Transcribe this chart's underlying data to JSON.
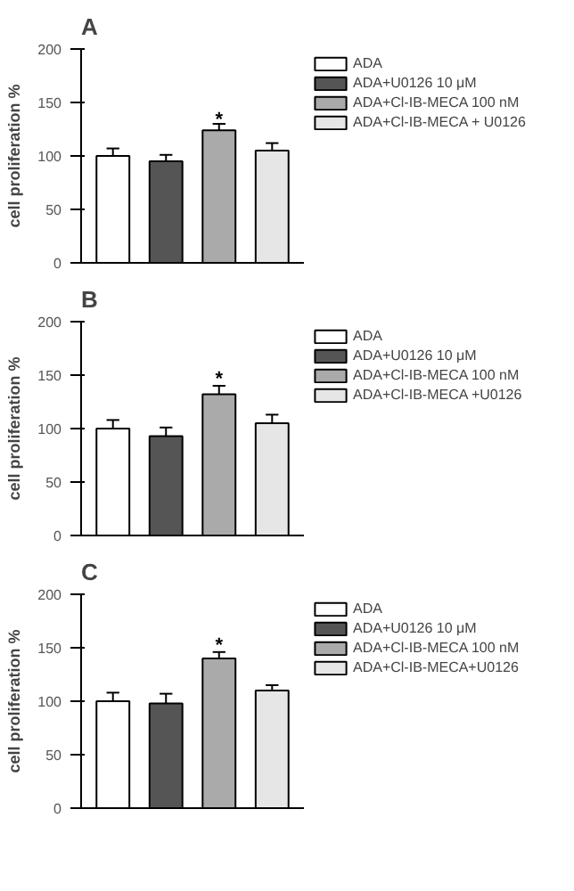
{
  "chart_data": [
    {
      "type": "bar",
      "title": "A",
      "ylabel": "cell proliferation %",
      "categories": [
        null
      ],
      "ylim": [
        0,
        200
      ],
      "yticks": [
        0,
        50,
        100,
        150,
        200
      ],
      "grid": false,
      "legend": "right",
      "tick_labels": "y",
      "series": [
        {
          "name": "ADA",
          "color": "#ffffff",
          "values": [
            100
          ],
          "errors": [
            7
          ]
        },
        {
          "name": "ADA+U0126 10 μM",
          "color": "#555555",
          "values": [
            95
          ],
          "errors": [
            6
          ]
        },
        {
          "name": "ADA+Cl-IB-MECA 100 nM",
          "color": "#aaaaaa",
          "values": [
            124
          ],
          "errors": [
            6
          ]
        },
        {
          "name": "ADA+Cl-IB-MECA + U0126",
          "color": "#e6e6e6",
          "values": [
            105
          ],
          "errors": [
            7
          ]
        }
      ],
      "annotations": [
        {
          "text": "*",
          "y": 133
        }
      ]
    },
    {
      "type": "bar",
      "title": "B",
      "ylabel": "cell proliferation %",
      "categories": [
        null
      ],
      "ylim": [
        0,
        200
      ],
      "yticks": [
        0,
        50,
        100,
        150,
        200
      ],
      "grid": false,
      "legend": "right",
      "tick_labels": "y",
      "series": [
        {
          "name": "ADA",
          "color": "#ffffff",
          "values": [
            100
          ],
          "errors": [
            8
          ]
        },
        {
          "name": "ADA+U0126 10 μM",
          "color": "#555555",
          "values": [
            93
          ],
          "errors": [
            8
          ]
        },
        {
          "name": "ADA+Cl-IB-MECA 100 nM",
          "color": "#aaaaaa",
          "values": [
            132
          ],
          "errors": [
            8
          ]
        },
        {
          "name": "ADA+Cl-IB-MECA +U0126",
          "color": "#e6e6e6",
          "values": [
            105
          ],
          "errors": [
            8
          ]
        }
      ],
      "annotations": [
        {
          "text": "*",
          "y": 146
        }
      ]
    },
    {
      "type": "bar",
      "title": "C",
      "ylabel": "cell proliferation %",
      "categories": [
        null
      ],
      "ylim": [
        0,
        200
      ],
      "yticks": [
        0,
        50,
        100,
        150,
        200
      ],
      "grid": false,
      "legend": "right",
      "tick_labels": "y",
      "series": [
        {
          "name": "ADA",
          "color": "#ffffff",
          "values": [
            100
          ],
          "errors": [
            8
          ]
        },
        {
          "name": "ADA+U0126 10 μM",
          "color": "#555555",
          "values": [
            98
          ],
          "errors": [
            9
          ]
        },
        {
          "name": "ADA+Cl-IB-MECA 100 nM",
          "color": "#aaaaaa",
          "values": [
            140
          ],
          "errors": [
            6
          ]
        },
        {
          "name": "ADA+Cl-IB-MECA+U0126",
          "color": "#e6e6e6",
          "values": [
            110
          ],
          "errors": [
            5
          ]
        }
      ],
      "annotations": [
        {
          "text": "*",
          "y": 152
        }
      ]
    }
  ]
}
